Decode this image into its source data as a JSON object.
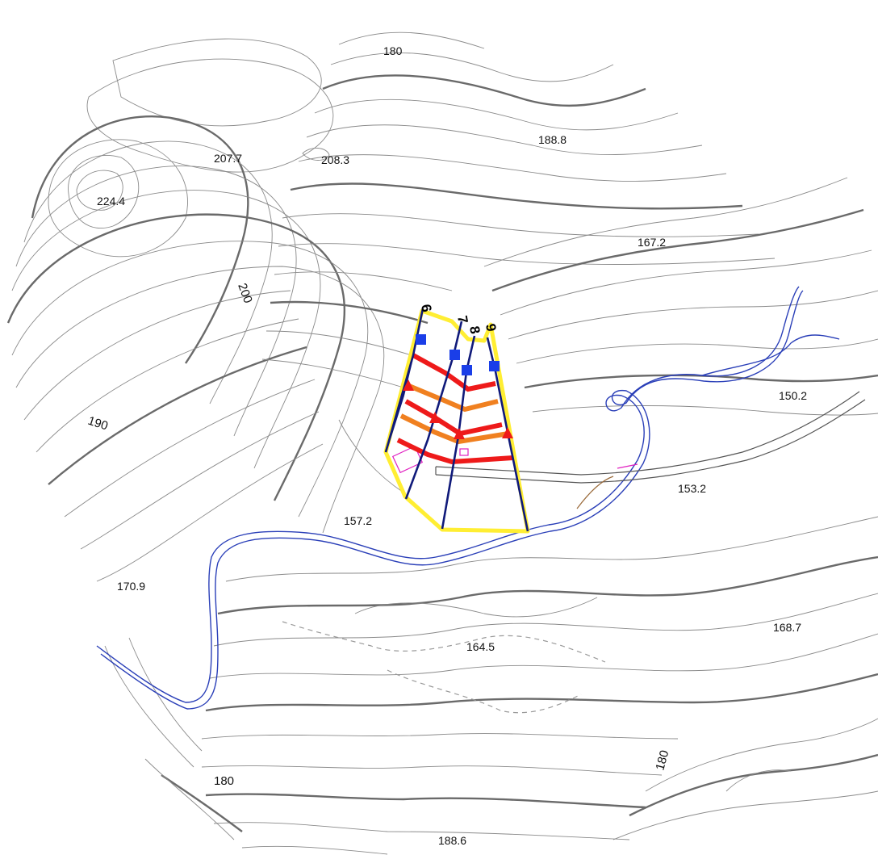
{
  "map": {
    "elevations": {
      "e1": "180",
      "e2": "188.8",
      "e3": "207.7",
      "e4": "208.3",
      "e5": "224.4",
      "e6": "167.2",
      "e7": "200",
      "e8": "190",
      "e9": "150.2",
      "e10": "153.2",
      "e11": "157.2",
      "e12": "170.9",
      "e13": "168.7",
      "e14": "164.5",
      "e15": "180",
      "e16": "180",
      "e17": "188.6"
    },
    "sections": {
      "s6a": "6",
      "s7": "7",
      "s8": "8",
      "s9": "9"
    },
    "colors": {
      "boundary": "#ffee33",
      "center_lines": "#101a7a",
      "band_red": "#ee1a1a",
      "band_orange": "#f08020",
      "marker_square": "#1a3ee8",
      "marker_triangle": "#ee1a1a",
      "river": "#2a3fb8",
      "building": "#e020c0"
    },
    "icons": [
      "square-marker-icon",
      "triangle-marker-icon"
    ]
  }
}
